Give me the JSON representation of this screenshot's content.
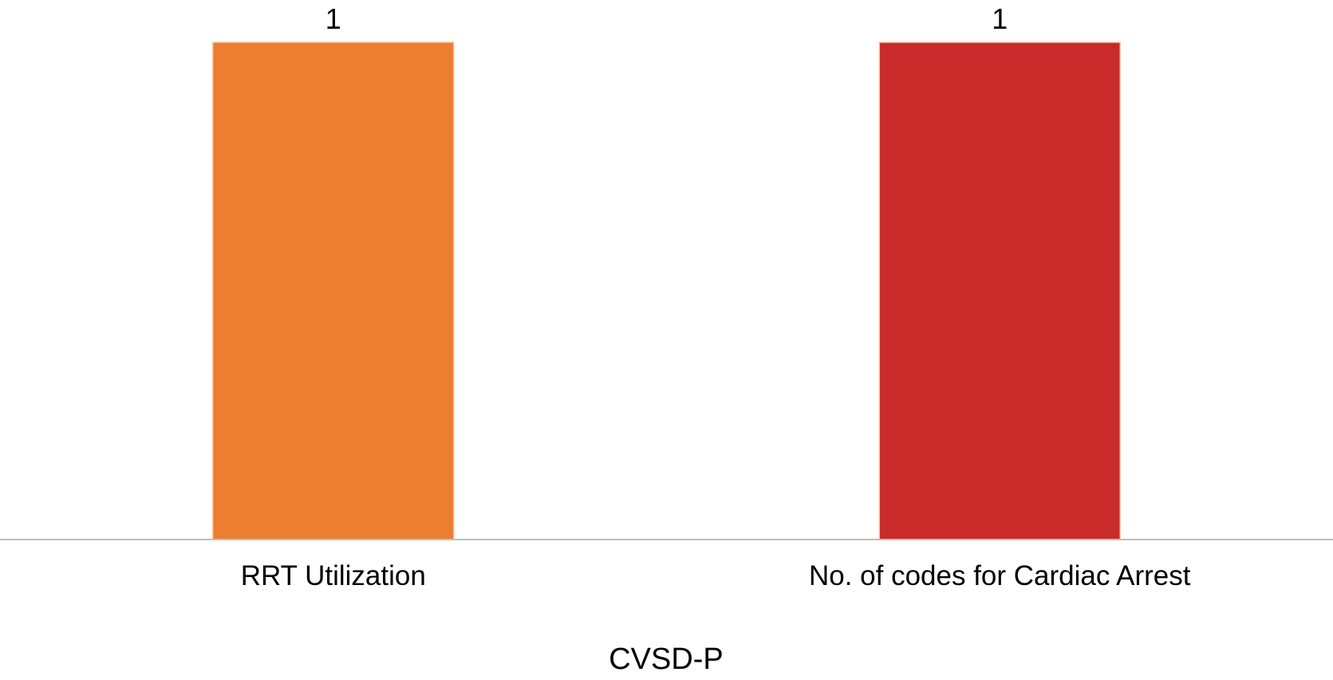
{
  "chart_data": {
    "type": "bar",
    "categories": [
      "RRT Utilization",
      "No. of codes for Cardiac Arrest"
    ],
    "values": [
      1,
      1
    ],
    "data_labels": [
      "1",
      "1"
    ],
    "colors": [
      "#ED7D31",
      "#C92B2B"
    ],
    "xlabel": "CVSD-P",
    "ylabel": "",
    "ylim": [
      0,
      1
    ],
    "grid": false,
    "legend": "none"
  }
}
